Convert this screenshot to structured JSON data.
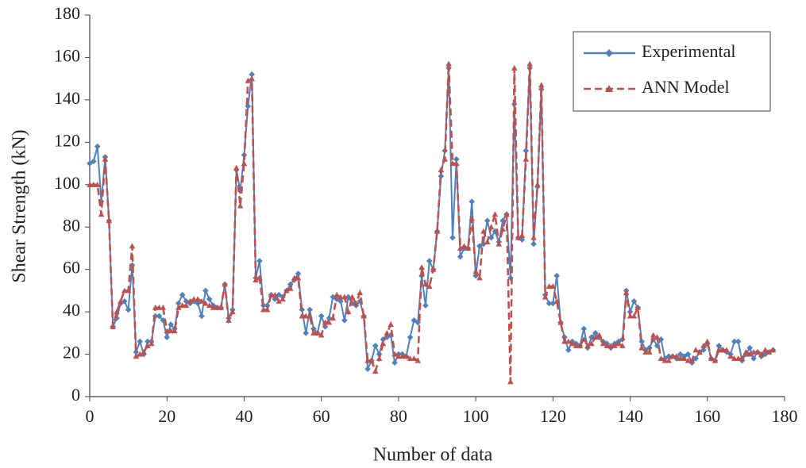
{
  "chart_data": {
    "type": "line",
    "xlabel": "Number of data",
    "ylabel": "Shear Strength (kN)",
    "xlim": [
      0,
      180
    ],
    "xticks": [
      0,
      20,
      40,
      60,
      80,
      100,
      120,
      140,
      160,
      180
    ],
    "ylim": [
      0,
      180
    ],
    "yticks": [
      0,
      20,
      40,
      60,
      80,
      100,
      120,
      140,
      160,
      180
    ],
    "grid": false,
    "legend": "upper right",
    "x": [
      0,
      1,
      2,
      3,
      4,
      5,
      6,
      7,
      8,
      9,
      10,
      11,
      12,
      13,
      14,
      15,
      16,
      17,
      18,
      19,
      20,
      21,
      22,
      23,
      24,
      25,
      26,
      27,
      28,
      29,
      30,
      31,
      32,
      33,
      34,
      35,
      36,
      37,
      38,
      39,
      40,
      41,
      42,
      43,
      44,
      45,
      46,
      47,
      48,
      49,
      50,
      51,
      52,
      53,
      54,
      55,
      56,
      57,
      58,
      59,
      60,
      61,
      62,
      63,
      64,
      65,
      66,
      67,
      68,
      69,
      70,
      71,
      72,
      73,
      74,
      75,
      76,
      77,
      78,
      79,
      80,
      81,
      82,
      83,
      84,
      85,
      86,
      87,
      88,
      89,
      90,
      91,
      92,
      93,
      94,
      95,
      96,
      97,
      98,
      99,
      100,
      101,
      102,
      103,
      104,
      105,
      106,
      107,
      108,
      109,
      110,
      111,
      112,
      113,
      114,
      115,
      116,
      117,
      118,
      119,
      120,
      121,
      122,
      123,
      124,
      125,
      126,
      127,
      128,
      129,
      130,
      131,
      132,
      133,
      134,
      135,
      136,
      137,
      138,
      139,
      140,
      141,
      142,
      143,
      144,
      145,
      146,
      147,
      148,
      149,
      150,
      151,
      152,
      153,
      154,
      155,
      156,
      157,
      158,
      159,
      160,
      161,
      162,
      163,
      164,
      165,
      166,
      167,
      168,
      169,
      170,
      171,
      172,
      173,
      174,
      175,
      176,
      177
    ],
    "series": [
      {
        "name": "Experimental",
        "color": "#4f81bd",
        "marker": "diamond",
        "dashed": false,
        "values": [
          110,
          111,
          118,
          92,
          113,
          83,
          33,
          37,
          44,
          45,
          41,
          62,
          21,
          26,
          20,
          26,
          26,
          38,
          38,
          36,
          28,
          34,
          32,
          44,
          48,
          45,
          44,
          45,
          44,
          38,
          50,
          46,
          43,
          42,
          42,
          53,
          37,
          41,
          107,
          97,
          114,
          137,
          152,
          56,
          64,
          43,
          43,
          48,
          46,
          48,
          47,
          50,
          53,
          55,
          58,
          41,
          30,
          41,
          32,
          30,
          38,
          33,
          37,
          47,
          46,
          45,
          36,
          47,
          44,
          43,
          45,
          38,
          13,
          17,
          24,
          20,
          27,
          28,
          29,
          16,
          20,
          20,
          19,
          28,
          36,
          35,
          57,
          43,
          64,
          60,
          78,
          104,
          116,
          155,
          75,
          112,
          66,
          70,
          70,
          92,
          57,
          71,
          72,
          83,
          75,
          78,
          73,
          83,
          86,
          56,
          138,
          75,
          74,
          116,
          155,
          72,
          99,
          145,
          48,
          44,
          44,
          57,
          35,
          28,
          22,
          26,
          25,
          24,
          32,
          23,
          28,
          30,
          28,
          26,
          25,
          23,
          25,
          26,
          27,
          50,
          40,
          45,
          42,
          26,
          22,
          23,
          27,
          24,
          27,
          18,
          19,
          19,
          18,
          20,
          19,
          20,
          16,
          18,
          21,
          22,
          25,
          18,
          17,
          24,
          22,
          21,
          20,
          26,
          26,
          17,
          20,
          23,
          18,
          21,
          19,
          20,
          21,
          22
        ]
      },
      {
        "name": "ANN Model",
        "color": "#c0504d",
        "marker": "triangle",
        "dashed": true,
        "values": [
          100,
          100,
          100,
          86,
          112,
          83,
          33,
          40,
          45,
          50,
          50,
          71,
          19,
          20,
          21,
          24,
          25,
          42,
          42,
          42,
          31,
          31,
          31,
          42,
          43,
          43,
          45,
          46,
          46,
          45,
          44,
          43,
          42,
          42,
          42,
          53,
          36,
          40,
          108,
          90,
          110,
          149,
          150,
          55,
          56,
          41,
          41,
          48,
          48,
          45,
          46,
          50,
          51,
          56,
          56,
          38,
          38,
          38,
          30,
          30,
          29,
          35,
          35,
          37,
          48,
          47,
          47,
          40,
          47,
          44,
          49,
          38,
          17,
          17,
          12,
          18,
          25,
          30,
          34,
          20,
          19,
          19,
          19,
          18,
          18,
          17,
          61,
          53,
          52,
          60,
          78,
          107,
          112,
          157,
          110,
          110,
          70,
          71,
          70,
          84,
          59,
          56,
          78,
          73,
          80,
          86,
          72,
          79,
          86,
          7,
          155,
          75,
          76,
          112,
          157,
          75,
          100,
          147,
          47,
          52,
          52,
          45,
          35,
          26,
          26,
          25,
          24,
          24,
          27,
          24,
          25,
          28,
          29,
          25,
          24,
          24,
          24,
          25,
          24,
          49,
          38,
          38,
          42,
          23,
          21,
          21,
          29,
          28,
          18,
          17,
          17,
          19,
          19,
          18,
          18,
          17,
          17,
          22,
          21,
          24,
          26,
          18,
          17,
          22,
          22,
          22,
          19,
          18,
          18,
          18,
          21,
          20,
          21,
          21,
          20,
          22,
          21,
          22
        ]
      }
    ]
  }
}
